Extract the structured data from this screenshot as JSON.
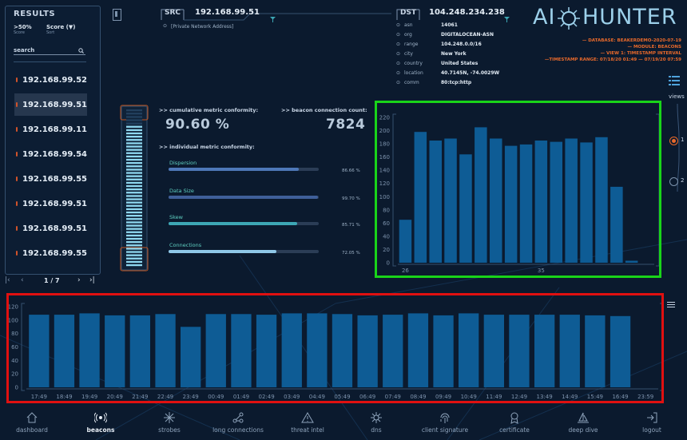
{
  "results": {
    "title": "RESULTS",
    "filter_label": ">50%",
    "filter_sub": "Score",
    "sort_label": "Score (▼)",
    "sort_sub": "Sort",
    "search_placeholder": "search",
    "items": [
      "192.168.99.52",
      "192.168.99.51",
      "192.168.99.11",
      "192.168.99.54",
      "192.168.99.55",
      "192.168.99.51",
      "192.168.99.51",
      "192.168.99.55"
    ],
    "selected_index": 1,
    "pager": "1 / 7"
  },
  "src": {
    "label": "SRC",
    "ip": "192.168.99.51",
    "note": "[Private Network Address]"
  },
  "dst": {
    "label": "DST",
    "ip": "104.248.234.238",
    "fields": [
      {
        "k": "asn",
        "v": "14061"
      },
      {
        "k": "org",
        "v": "DIGITALOCEAN-ASN"
      },
      {
        "k": "range",
        "v": "104.248.0.0/16"
      },
      {
        "k": "city",
        "v": "New York"
      },
      {
        "k": "country",
        "v": "United States"
      },
      {
        "k": "location",
        "v": "40.7145N, -74.0029W"
      },
      {
        "k": "comm",
        "v": "80:tcp:http"
      }
    ]
  },
  "brand": {
    "left": "AI",
    "right": "HUNTER"
  },
  "info": {
    "database": "— DATABASE: BEAKERDEMO-2020-07-19",
    "module": "— MODULE: BEACONS",
    "view": "— VIEW 1: TIMESTAMP INTERVAL",
    "range": "—TIMESTAMP RANGE: 07/18/20 01:49 — 07/19/20 07:59"
  },
  "metrics": {
    "cumulative_label": ">> cumulative metric conformity:",
    "cumulative_value": "90.60 %",
    "count_label": ">> beacon connection count:",
    "count_value": "7824",
    "individual_label": ">> individual metric conformity:",
    "items": [
      {
        "name": "Dispersion",
        "pct_text": "86.66 %",
        "value": 0.8666,
        "color": "#4e78b8"
      },
      {
        "name": "Data Size",
        "pct_text": "99.70 %",
        "value": 0.997,
        "color": "#3f5f99"
      },
      {
        "name": "Skew",
        "pct_text": "85.71 %",
        "value": 0.8571,
        "color": "#3da7b5"
      },
      {
        "name": "Connections",
        "pct_text": "72.05 %",
        "value": 0.7205,
        "color": "#8fc8e8"
      }
    ]
  },
  "gauge": {
    "value": 0.906
  },
  "views": {
    "label": "views",
    "options": [
      "1",
      "2"
    ],
    "selected": "1"
  },
  "chart_data": [
    {
      "type": "bar",
      "x_tick_labels": [
        "26",
        "35"
      ],
      "x_tick_positions": [
        26,
        35
      ],
      "x": [
        26,
        27,
        28,
        29,
        30,
        31,
        32,
        33,
        34,
        35,
        36,
        37,
        38,
        39,
        40,
        41,
        42
      ],
      "values": [
        65,
        198,
        185,
        188,
        164,
        205,
        188,
        177,
        179,
        185,
        183,
        188,
        182,
        190,
        115,
        3,
        null
      ],
      "ylim": [
        0,
        220
      ],
      "yticks": [
        0,
        20,
        40,
        60,
        80,
        100,
        120,
        140,
        160,
        180,
        200,
        220
      ],
      "title": "",
      "xlabel": "",
      "ylabel": ""
    },
    {
      "type": "bar",
      "categories": [
        "17:49",
        "18:49",
        "19:49",
        "20:49",
        "21:49",
        "22:49",
        "23:49",
        "00:49",
        "01:49",
        "02:49",
        "03:49",
        "04:49",
        "05:49",
        "06:49",
        "07:49",
        "08:49",
        "09:49",
        "10:49",
        "11:49",
        "12:49",
        "13:49",
        "14:49",
        "15:49",
        "16:49",
        "23:59"
      ],
      "values": [
        108,
        108,
        110,
        107,
        107,
        109,
        90,
        109,
        109,
        108,
        110,
        110,
        109,
        107,
        108,
        110,
        107,
        110,
        108,
        108,
        108,
        108,
        107,
        106,
        null
      ],
      "ylim": [
        0,
        120
      ],
      "yticks": [
        0,
        20,
        40,
        60,
        80,
        100,
        120
      ],
      "title": "",
      "xlabel": "",
      "ylabel": ""
    }
  ],
  "nav": [
    {
      "id": "dashboard",
      "label": "dashboard",
      "active": false
    },
    {
      "id": "beacons",
      "label": "beacons",
      "active": true
    },
    {
      "id": "strobes",
      "label": "strobes",
      "active": false
    },
    {
      "id": "long-connections",
      "label": "long connections",
      "active": false
    },
    {
      "id": "threat-intel",
      "label": "threat intel",
      "active": false
    },
    {
      "id": "dns",
      "label": "dns",
      "active": false
    },
    {
      "id": "client-signature",
      "label": "client signature",
      "active": false
    },
    {
      "id": "certificate",
      "label": "certificate",
      "active": false
    },
    {
      "id": "deep-dive",
      "label": "deep dive",
      "active": false
    },
    {
      "id": "logout",
      "label": "logout",
      "active": false
    }
  ],
  "colors": {
    "bar": "#0e5c95",
    "highlight_green": "#19d419",
    "highlight_red": "#e01010",
    "accent_orange": "#e8692b"
  }
}
